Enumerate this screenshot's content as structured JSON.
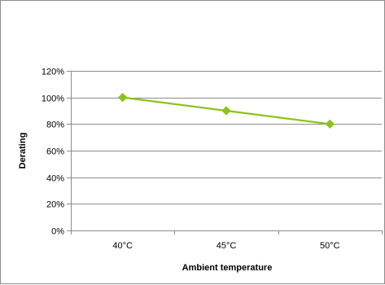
{
  "chart_data": {
    "type": "line",
    "categories": [
      "40°C",
      "45°C",
      "50°C"
    ],
    "series": [
      {
        "values": [
          100,
          90,
          80
        ],
        "color": "#8dc21f"
      }
    ],
    "title": "",
    "xlabel": "Ambient temperature",
    "ylabel": "Derating",
    "ylim": [
      0,
      120
    ],
    "ytick_step": 20,
    "ytick_labels": [
      "0%",
      "20%",
      "40%",
      "60%",
      "80%",
      "100%",
      "120%"
    ],
    "grid": true,
    "legend": "none",
    "marker": "diamond"
  }
}
